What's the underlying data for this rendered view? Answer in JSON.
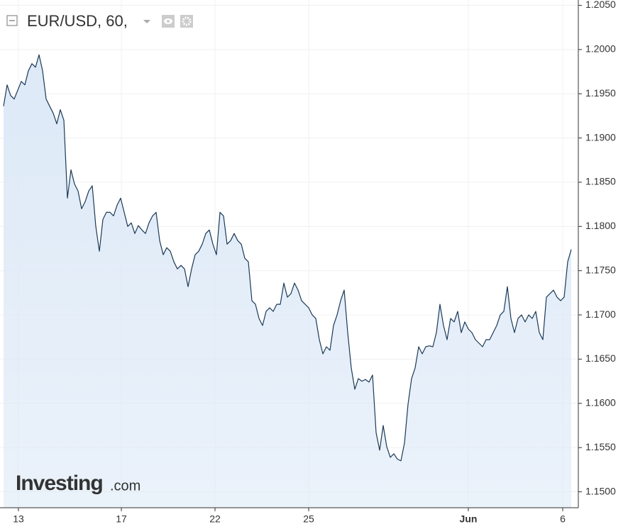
{
  "chart_data": {
    "type": "area",
    "title": "EUR/USD, 60,",
    "brand": "Investing",
    "brand_suffix": ".com",
    "values": [
      1.1936,
      1.196,
      1.1948,
      1.1944,
      1.1954,
      1.1964,
      1.196,
      1.1976,
      1.1984,
      1.198,
      1.1994,
      1.1976,
      1.1944,
      1.1936,
      1.1928,
      1.1916,
      1.1932,
      1.192,
      1.1832,
      1.1864,
      1.1848,
      1.184,
      1.182,
      1.1828,
      1.184,
      1.1846,
      1.18,
      1.1772,
      1.1808,
      1.1816,
      1.1816,
      1.1812,
      1.1824,
      1.1832,
      1.1816,
      1.18,
      1.1804,
      1.1792,
      1.1801,
      1.1796,
      1.1792,
      1.1804,
      1.1812,
      1.1816,
      1.1784,
      1.1768,
      1.1776,
      1.1772,
      1.176,
      1.1752,
      1.1756,
      1.1752,
      1.1732,
      1.1752,
      1.1768,
      1.1772,
      1.178,
      1.1792,
      1.1796,
      1.178,
      1.1768,
      1.1816,
      1.1812,
      1.178,
      1.1784,
      1.1792,
      1.1784,
      1.178,
      1.1764,
      1.176,
      1.1716,
      1.1712,
      1.1696,
      1.1688,
      1.1704,
      1.1708,
      1.1704,
      1.1712,
      1.1712,
      1.1736,
      1.172,
      1.1724,
      1.1736,
      1.1728,
      1.1716,
      1.1712,
      1.1708,
      1.17,
      1.1696,
      1.1672,
      1.1656,
      1.1664,
      1.166,
      1.1688,
      1.17,
      1.1716,
      1.1728,
      1.168,
      1.164,
      1.1616,
      1.1628,
      1.1625,
      1.1627,
      1.1624,
      1.1632,
      1.1567,
      1.1547,
      1.1575,
      1.1551,
      1.1539,
      1.1543,
      1.1537,
      1.1535,
      1.1555,
      1.1599,
      1.1628,
      1.164,
      1.1664,
      1.1656,
      1.1664,
      1.1665,
      1.1664,
      1.168,
      1.1712,
      1.1688,
      1.1672,
      1.1696,
      1.1692,
      1.1704,
      1.168,
      1.1692,
      1.1684,
      1.168,
      1.1672,
      1.1668,
      1.1664,
      1.1672,
      1.1672,
      1.168,
      1.1688,
      1.17,
      1.1704,
      1.1732,
      1.1696,
      1.168,
      1.1696,
      1.17,
      1.1692,
      1.17,
      1.1696,
      1.1704,
      1.168,
      1.1672,
      1.172,
      1.1724,
      1.1728,
      1.172,
      1.1716,
      1.172,
      1.176,
      1.1774
    ],
    "color": "#1b3a57",
    "fill": "#dde9f7",
    "xlim": [
      -1,
      162
    ],
    "xticks": [
      {
        "value": 4.2,
        "label": "13"
      },
      {
        "value": 33.2,
        "label": "17"
      },
      {
        "value": 59.6,
        "label": "22"
      },
      {
        "value": 86,
        "label": "25"
      },
      {
        "value": 131,
        "label": "Jun"
      },
      {
        "value": 157.6,
        "label": "6"
      }
    ],
    "ylim": [
      1.1482,
      1.2056
    ],
    "yticks": [
      {
        "value": 1.15,
        "label": "1.1500"
      },
      {
        "value": 1.155,
        "label": "1.1550"
      },
      {
        "value": 1.16,
        "label": "1.1600"
      },
      {
        "value": 1.165,
        "label": "1.1650"
      },
      {
        "value": 1.17,
        "label": "1.1700"
      },
      {
        "value": 1.175,
        "label": "1.1750"
      },
      {
        "value": 1.18,
        "label": "1.1800"
      },
      {
        "value": 1.185,
        "label": "1.1850"
      },
      {
        "value": 1.19,
        "label": "1.1900"
      },
      {
        "value": 1.195,
        "label": "1.1950"
      },
      {
        "value": 1.2,
        "label": "1.2000"
      },
      {
        "value": 1.205,
        "label": "1.2050"
      }
    ],
    "grid": true
  }
}
